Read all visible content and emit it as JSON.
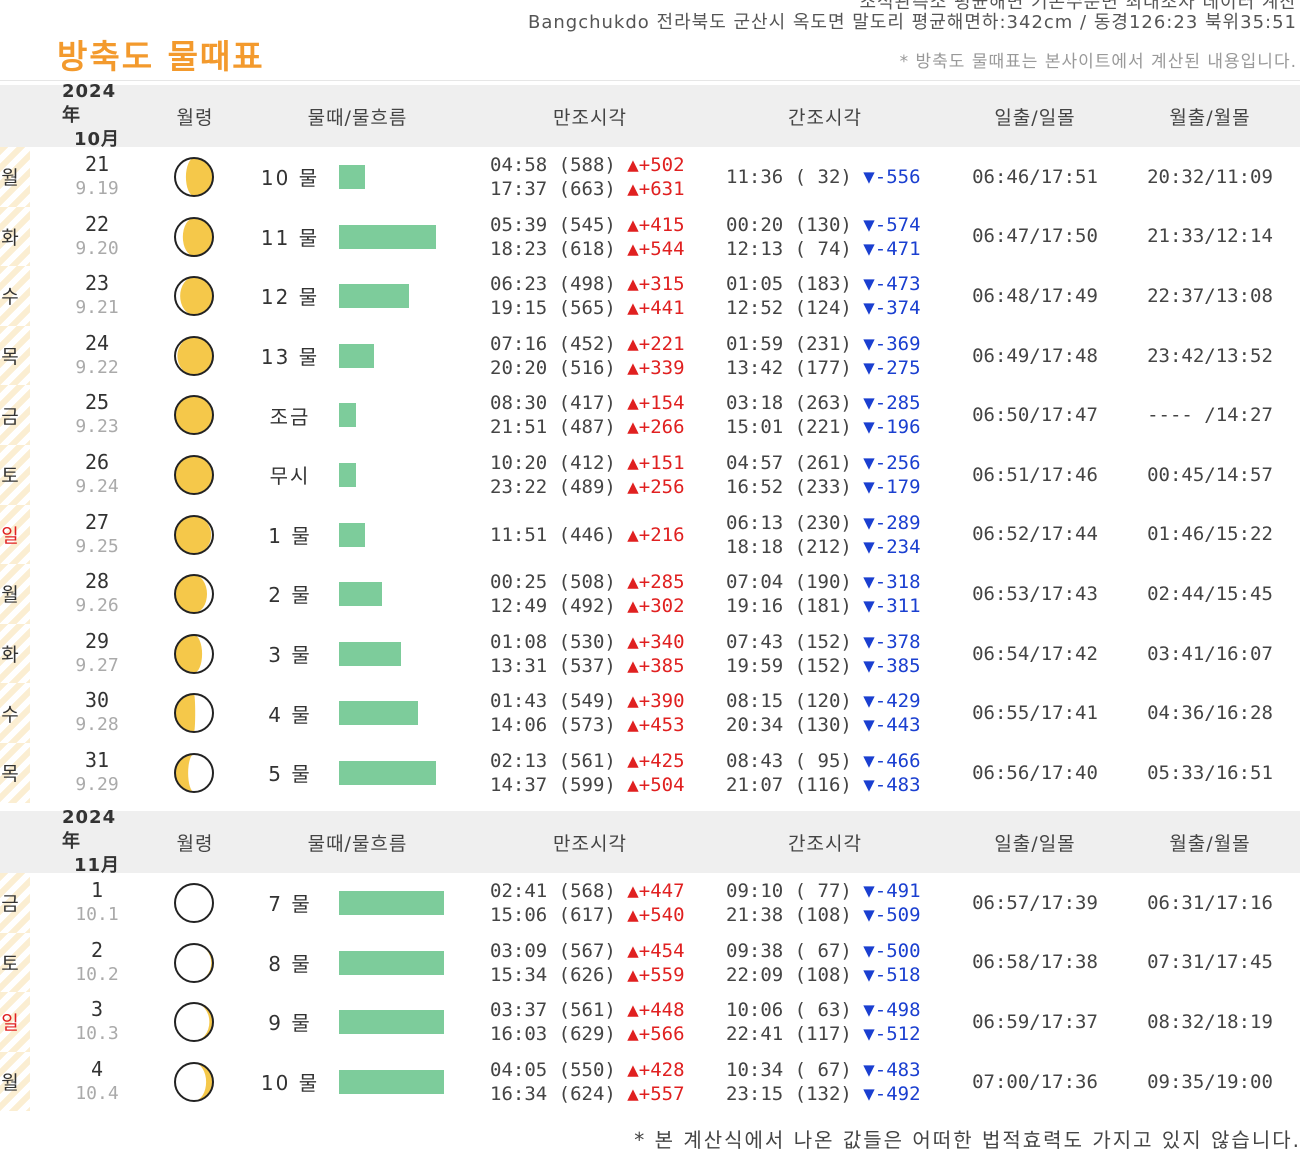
{
  "header": {
    "cut_line": "조석관측소 평균해면 기본수준면 최대조차 데이터 계산",
    "location": "Bangchukdo 전라북도 군산시 옥도면 말도리 평균해면하:342cm / 동경126:23 북위35:51",
    "title": "방축도 물때표",
    "note": "* 방축도 물때표는 본사이트에서 계산된 내용입니다."
  },
  "columns": {
    "moon": "월령",
    "tide": "물때/물흐름",
    "high": "만조시각",
    "low": "간조시각",
    "sun": "일출/일몰",
    "moonrise": "월출/월몰"
  },
  "icons": {
    "high_tide": "red-triangle-up-icon",
    "low_tide": "blue-triangle-down-icon",
    "moon_phase": "moon-phase-icon"
  },
  "colors": {
    "title": "#f39a2d",
    "bar": "#7dcc9b",
    "high": "#e02020",
    "low": "#1a3fd0",
    "sunday": "#e02020",
    "moon_fill": "#f5c84a"
  },
  "months": [
    {
      "year": "2024年",
      "month": "10月",
      "rows": [
        {
          "weekday": "월",
          "sunday": false,
          "day": "21",
          "lunar": "9.19",
          "tide": "10 물",
          "flow": 0.25,
          "phase": 0.32,
          "high": [
            {
              "t": "04:58 (588)",
              "d": "+502"
            },
            {
              "t": "17:37 (663)",
              "d": "+631"
            }
          ],
          "low": [
            {
              "t": "11:36 ( 32)",
              "d": "-556"
            }
          ],
          "sun": "06:46/17:51",
          "moon": "20:32/11:09"
        },
        {
          "weekday": "화",
          "sunday": false,
          "day": "22",
          "lunar": "9.20",
          "tide": "11 물",
          "flow": 0.92,
          "phase": 0.35,
          "high": [
            {
              "t": "05:39 (545)",
              "d": "+415"
            },
            {
              "t": "18:23 (618)",
              "d": "+544"
            }
          ],
          "low": [
            {
              "t": "00:20 (130)",
              "d": "-574"
            },
            {
              "t": "12:13 ( 74)",
              "d": "-471"
            }
          ],
          "sun": "06:47/17:50",
          "moon": "21:33/12:14"
        },
        {
          "weekday": "수",
          "sunday": false,
          "day": "23",
          "lunar": "9.21",
          "tide": "12 물",
          "flow": 0.67,
          "phase": 0.38,
          "high": [
            {
              "t": "06:23 (498)",
              "d": "+315"
            },
            {
              "t": "19:15 (565)",
              "d": "+441"
            }
          ],
          "low": [
            {
              "t": "01:05 (183)",
              "d": "-473"
            },
            {
              "t": "12:52 (124)",
              "d": "-374"
            }
          ],
          "sun": "06:48/17:49",
          "moon": "22:37/13:08"
        },
        {
          "weekday": "목",
          "sunday": false,
          "day": "24",
          "lunar": "9.22",
          "tide": "13 물",
          "flow": 0.33,
          "phase": 0.42,
          "high": [
            {
              "t": "07:16 (452)",
              "d": "+221"
            },
            {
              "t": "20:20 (516)",
              "d": "+339"
            }
          ],
          "low": [
            {
              "t": "01:59 (231)",
              "d": "-369"
            },
            {
              "t": "13:42 (177)",
              "d": "-275"
            }
          ],
          "sun": "06:49/17:48",
          "moon": "23:42/13:52"
        },
        {
          "weekday": "금",
          "sunday": false,
          "day": "25",
          "lunar": "9.23",
          "tide": "조금",
          "flow": 0.16,
          "phase": 0.47,
          "high": [
            {
              "t": "08:30 (417)",
              "d": "+154"
            },
            {
              "t": "21:51 (487)",
              "d": "+266"
            }
          ],
          "low": [
            {
              "t": "03:18 (263)",
              "d": "-285"
            },
            {
              "t": "15:01 (221)",
              "d": "-196"
            }
          ],
          "sun": "06:50/17:47",
          "moon": "---- /14:27"
        },
        {
          "weekday": "토",
          "sunday": false,
          "day": "26",
          "lunar": "9.24",
          "tide": "무시",
          "flow": 0.16,
          "phase": 0.52,
          "high": [
            {
              "t": "10:20 (412)",
              "d": "+151"
            },
            {
              "t": "23:22 (489)",
              "d": "+256"
            }
          ],
          "low": [
            {
              "t": "04:57 (261)",
              "d": "-256"
            },
            {
              "t": "16:52 (233)",
              "d": "-179"
            }
          ],
          "sun": "06:51/17:46",
          "moon": "00:45/14:57"
        },
        {
          "weekday": "일",
          "sunday": true,
          "day": "27",
          "lunar": "9.25",
          "tide": "1 물",
          "flow": 0.25,
          "phase": 0.57,
          "high": [
            {
              "t": "11:51 (446)",
              "d": "+216"
            }
          ],
          "low": [
            {
              "t": "06:13 (230)",
              "d": "-289"
            },
            {
              "t": "18:18 (212)",
              "d": "-234"
            }
          ],
          "sun": "06:52/17:44",
          "moon": "01:46/15:22"
        },
        {
          "weekday": "월",
          "sunday": false,
          "day": "28",
          "lunar": "9.26",
          "tide": "2 물",
          "flow": 0.41,
          "phase": 0.63,
          "high": [
            {
              "t": "00:25 (508)",
              "d": "+285"
            },
            {
              "t": "12:49 (492)",
              "d": "+302"
            }
          ],
          "low": [
            {
              "t": "07:04 (190)",
              "d": "-318"
            },
            {
              "t": "19:16 (181)",
              "d": "-311"
            }
          ],
          "sun": "06:53/17:43",
          "moon": "02:44/15:45"
        },
        {
          "weekday": "화",
          "sunday": false,
          "day": "29",
          "lunar": "9.27",
          "tide": "3 물",
          "flow": 0.59,
          "phase": 0.68,
          "high": [
            {
              "t": "01:08 (530)",
              "d": "+340"
            },
            {
              "t": "13:31 (537)",
              "d": "+385"
            }
          ],
          "low": [
            {
              "t": "07:43 (152)",
              "d": "-378"
            },
            {
              "t": "19:59 (152)",
              "d": "-385"
            }
          ],
          "sun": "06:54/17:42",
          "moon": "03:41/16:07"
        },
        {
          "weekday": "수",
          "sunday": false,
          "day": "30",
          "lunar": "9.28",
          "tide": "4 물",
          "flow": 0.75,
          "phase": 0.74,
          "high": [
            {
              "t": "01:43 (549)",
              "d": "+390"
            },
            {
              "t": "14:06 (573)",
              "d": "+453"
            }
          ],
          "low": [
            {
              "t": "08:15 (120)",
              "d": "-429"
            },
            {
              "t": "20:34 (130)",
              "d": "-443"
            }
          ],
          "sun": "06:55/17:41",
          "moon": "04:36/16:28"
        },
        {
          "weekday": "목",
          "sunday": false,
          "day": "31",
          "lunar": "9.29",
          "tide": "5 물",
          "flow": 0.92,
          "phase": 0.8,
          "high": [
            {
              "t": "02:13 (561)",
              "d": "+425"
            },
            {
              "t": "14:37 (599)",
              "d": "+504"
            }
          ],
          "low": [
            {
              "t": "08:43 ( 95)",
              "d": "-466"
            },
            {
              "t": "21:07 (116)",
              "d": "-483"
            }
          ],
          "sun": "06:56/17:40",
          "moon": "05:33/16:51"
        }
      ]
    },
    {
      "year": "2024年",
      "month": "11月",
      "rows": [
        {
          "weekday": "금",
          "sunday": false,
          "day": "1",
          "lunar": "10.1",
          "tide": "7 물",
          "flow": 1.0,
          "phase": 0.04,
          "high": [
            {
              "t": "02:41 (568)",
              "d": "+447"
            },
            {
              "t": "15:06 (617)",
              "d": "+540"
            }
          ],
          "low": [
            {
              "t": "09:10 ( 77)",
              "d": "-491"
            },
            {
              "t": "21:38 (108)",
              "d": "-509"
            }
          ],
          "sun": "06:57/17:39",
          "moon": "06:31/17:16"
        },
        {
          "weekday": "토",
          "sunday": false,
          "day": "2",
          "lunar": "10.2",
          "tide": "8 물",
          "flow": 1.0,
          "phase": 0.07,
          "high": [
            {
              "t": "03:09 (567)",
              "d": "+454"
            },
            {
              "t": "15:34 (626)",
              "d": "+559"
            }
          ],
          "low": [
            {
              "t": "09:38 ( 67)",
              "d": "-500"
            },
            {
              "t": "22:09 (108)",
              "d": "-518"
            }
          ],
          "sun": "06:58/17:38",
          "moon": "07:31/17:45"
        },
        {
          "weekday": "일",
          "sunday": true,
          "day": "3",
          "lunar": "10.3",
          "tide": "9 물",
          "flow": 1.0,
          "phase": 0.1,
          "high": [
            {
              "t": "03:37 (561)",
              "d": "+448"
            },
            {
              "t": "16:03 (629)",
              "d": "+566"
            }
          ],
          "low": [
            {
              "t": "10:06 ( 63)",
              "d": "-498"
            },
            {
              "t": "22:41 (117)",
              "d": "-512"
            }
          ],
          "sun": "06:59/17:37",
          "moon": "08:32/18:19"
        },
        {
          "weekday": "월",
          "sunday": false,
          "day": "4",
          "lunar": "10.4",
          "tide": "10 물",
          "flow": 1.0,
          "phase": 0.14,
          "high": [
            {
              "t": "04:05 (550)",
              "d": "+428"
            },
            {
              "t": "16:34 (624)",
              "d": "+557"
            }
          ],
          "low": [
            {
              "t": "10:34 ( 67)",
              "d": "-483"
            },
            {
              "t": "23:15 (132)",
              "d": "-492"
            }
          ],
          "sun": "07:00/17:36",
          "moon": "09:35/19:00"
        }
      ]
    }
  ],
  "footer": "* 본 계산식에서 나온 값들은 어떠한 법적효력도 가지고 있지 않습니다."
}
